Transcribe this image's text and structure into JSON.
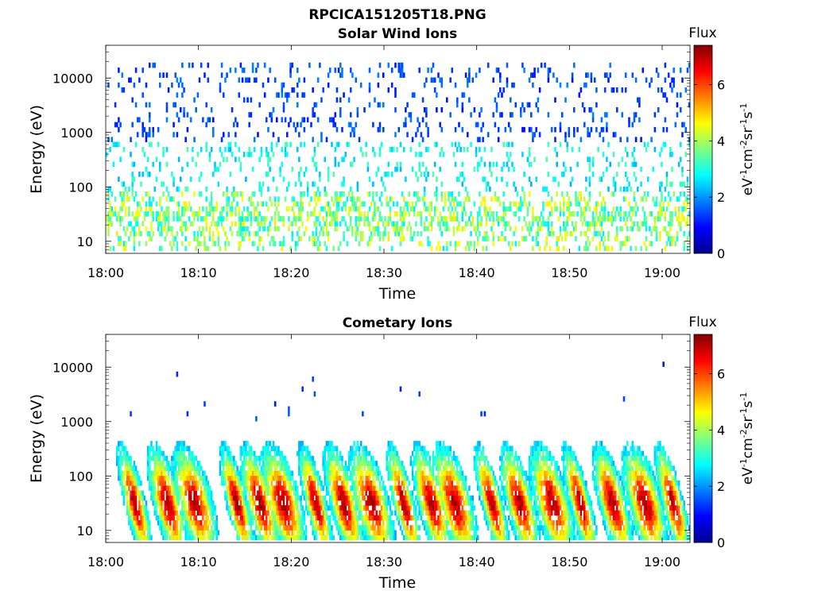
{
  "figure_title": "RPCICA151205T18.PNG",
  "colors": {
    "colormap": "jet",
    "axis": "#000000",
    "background": "#ffffff"
  },
  "chart_data": [
    {
      "type": "heatmap",
      "title": "Solar Wind Ions",
      "xlabel": "Time",
      "ylabel": "Energy (eV)",
      "x_range": [
        "18:00",
        "19:03"
      ],
      "x_ticks": [
        "18:00",
        "18:10",
        "18:20",
        "18:30",
        "18:40",
        "18:50",
        "19:00"
      ],
      "y_scale": "log",
      "y_range": [
        6,
        40000
      ],
      "y_ticks": [
        "10",
        "100",
        "1000",
        "10000"
      ],
      "grid": false,
      "colorbar": {
        "label_top": "Flux",
        "label_side": "eV-1cm-2sr-1s-1",
        "range": [
          0,
          7.4
        ],
        "ticks": [
          "0",
          "2",
          "4",
          "6"
        ]
      },
      "description_of_values": {
        "low_energy_band_eV": [
          10,
          60
        ],
        "low_energy_flux": [
          2.5,
          5
        ],
        "scatter_energy_eV": [
          200,
          20000
        ],
        "scatter_flux": [
          1,
          2
        ]
      }
    },
    {
      "type": "heatmap",
      "title": "Cometary Ions",
      "xlabel": "Time",
      "ylabel": "Energy (eV)",
      "x_range": [
        "18:00",
        "19:03"
      ],
      "x_ticks": [
        "18:00",
        "18:10",
        "18:20",
        "18:30",
        "18:40",
        "18:50",
        "19:00"
      ],
      "y_scale": "log",
      "y_range": [
        6,
        40000
      ],
      "y_ticks": [
        "10",
        "100",
        "1000",
        "10000"
      ],
      "grid": false,
      "colorbar": {
        "label_top": "Flux",
        "label_side": "eV-1cm-2sr-1s-1",
        "range": [
          0,
          7.4
        ],
        "ticks": [
          "0",
          "2",
          "4",
          "6"
        ]
      },
      "burst_times_min": [
        3,
        6.5,
        9.5,
        14,
        16.5,
        19,
        22.5,
        25.5,
        28.5,
        32,
        35,
        37.5,
        41.5,
        44.5,
        48,
        51,
        54.5,
        58,
        61
      ],
      "description_of_values": {
        "peak_energy_eV": [
          20,
          50
        ],
        "peak_flux": [
          5.5,
          7
        ],
        "burst_energy_extent_eV": [
          10,
          600
        ]
      }
    }
  ]
}
